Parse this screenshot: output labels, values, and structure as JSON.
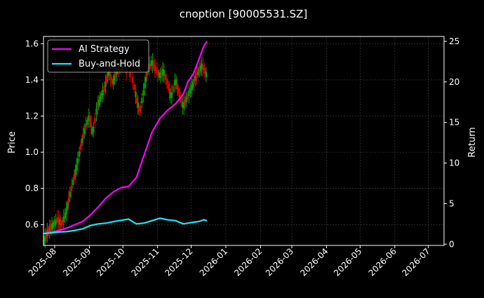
{
  "chart_data": {
    "type": "line",
    "title": "cnoption [90005531.SZ]",
    "xlabel": "",
    "ylabel": "Price",
    "y2label": "Return",
    "xlim": [
      "2025-07-22",
      "2026-07-15"
    ],
    "ylim": [
      0.485,
      1.64
    ],
    "y2lim": [
      -0.15,
      25.6
    ],
    "x_ticks": [
      "2025-08",
      "2025-09",
      "2025-10",
      "2025-11",
      "2025-12",
      "2026-01",
      "2026-02",
      "2026-03",
      "2026-04",
      "2026-05",
      "2026-06",
      "2026-07"
    ],
    "y_ticks": [
      0.6,
      0.8,
      1.0,
      1.2,
      1.4,
      1.6
    ],
    "y2_ticks": [
      0,
      5,
      10,
      15,
      20,
      25
    ],
    "grid": true,
    "legend_position": "top-left",
    "colors": {
      "background": "#000000",
      "up_candle": "#00a000",
      "down_candle": "#e00000",
      "ai_strategy": "#ff00ff",
      "buy_and_hold": "#1fe4f0",
      "grid": "#444444"
    },
    "candles_close_approx": {
      "x": [
        "2025-07-22",
        "2025-07-25",
        "2025-07-28",
        "2025-07-31",
        "2025-08-04",
        "2025-08-07",
        "2025-08-11",
        "2025-08-14",
        "2025-08-18",
        "2025-08-21",
        "2025-08-25",
        "2025-08-28",
        "2025-09-01",
        "2025-09-04",
        "2025-09-08",
        "2025-09-11",
        "2025-09-15",
        "2025-09-18",
        "2025-09-22",
        "2025-09-25",
        "2025-09-29",
        "2025-10-09",
        "2025-10-13",
        "2025-10-16",
        "2025-10-20",
        "2025-10-23",
        "2025-10-27",
        "2025-10-30",
        "2025-11-03",
        "2025-11-06",
        "2025-11-10",
        "2025-11-13",
        "2025-11-17",
        "2025-11-20",
        "2025-11-24",
        "2025-11-27",
        "2025-12-01",
        "2025-12-04",
        "2025-12-08",
        "2025-12-11",
        "2025-12-15"
      ],
      "values": [
        0.5,
        0.55,
        0.58,
        0.6,
        0.63,
        0.6,
        0.66,
        0.75,
        0.85,
        0.93,
        1.05,
        1.13,
        1.2,
        1.1,
        1.25,
        1.3,
        1.36,
        1.45,
        1.38,
        1.44,
        1.48,
        1.42,
        1.3,
        1.22,
        1.35,
        1.45,
        1.5,
        1.46,
        1.42,
        1.45,
        1.38,
        1.3,
        1.4,
        1.33,
        1.25,
        1.3,
        1.35,
        1.4,
        1.45,
        1.48,
        1.42
      ]
    },
    "series": [
      {
        "name": "AI Strategy",
        "axis": "right",
        "x": [
          "2025-07-22",
          "2025-08-05",
          "2025-08-12",
          "2025-08-19",
          "2025-08-26",
          "2025-09-02",
          "2025-09-09",
          "2025-09-16",
          "2025-09-23",
          "2025-09-30",
          "2025-10-06",
          "2025-10-13",
          "2025-10-20",
          "2025-10-27",
          "2025-11-03",
          "2025-11-10",
          "2025-11-17",
          "2025-11-24",
          "2025-11-28",
          "2025-12-03",
          "2025-12-08",
          "2025-12-12",
          "2025-12-15"
        ],
        "values": [
          1.3,
          1.7,
          2.0,
          2.4,
          2.8,
          3.6,
          4.6,
          5.7,
          6.5,
          7.0,
          7.1,
          8.2,
          11.0,
          13.8,
          15.5,
          16.5,
          17.3,
          18.5,
          20.0,
          21.0,
          22.8,
          24.3,
          25.0
        ]
      },
      {
        "name": "Buy-and-Hold",
        "axis": "right",
        "x": [
          "2025-07-22",
          "2025-08-05",
          "2025-08-12",
          "2025-08-19",
          "2025-08-26",
          "2025-09-02",
          "2025-09-09",
          "2025-09-16",
          "2025-09-23",
          "2025-09-30",
          "2025-10-06",
          "2025-10-13",
          "2025-10-20",
          "2025-10-27",
          "2025-11-03",
          "2025-11-10",
          "2025-11-17",
          "2025-11-24",
          "2025-11-28",
          "2025-12-03",
          "2025-12-08",
          "2025-12-12",
          "2025-12-15"
        ],
        "values": [
          1.3,
          1.5,
          1.55,
          1.7,
          1.9,
          2.3,
          2.5,
          2.6,
          2.8,
          2.95,
          3.1,
          2.5,
          2.6,
          2.9,
          3.2,
          3.0,
          2.9,
          2.5,
          2.6,
          2.7,
          2.8,
          3.0,
          2.9
        ]
      }
    ]
  }
}
